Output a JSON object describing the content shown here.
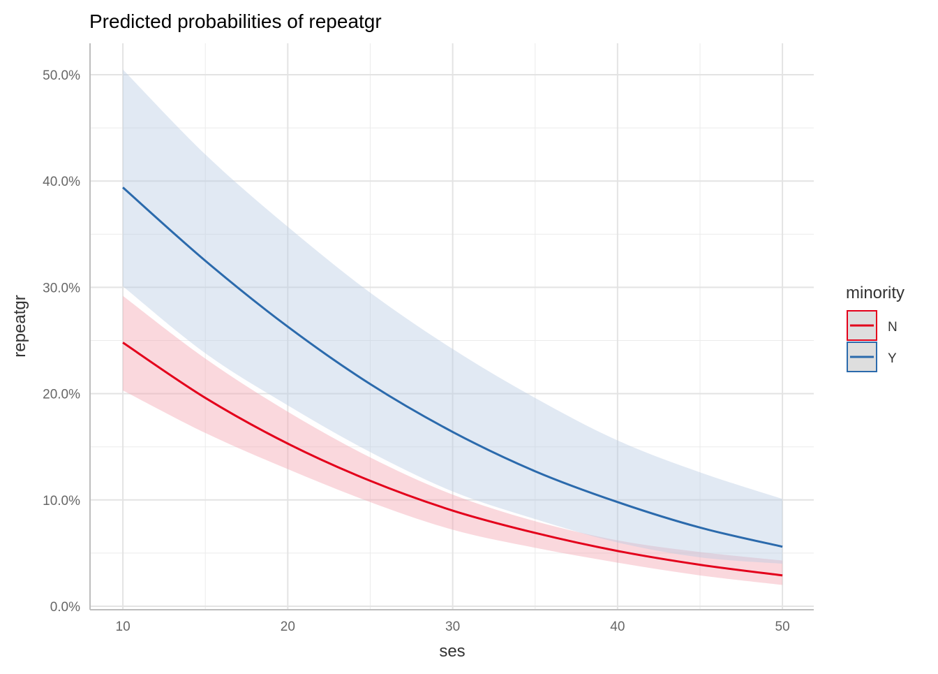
{
  "chart_data": {
    "type": "line",
    "title": "Predicted probabilities of repeatgr",
    "xlabel": "ses",
    "ylabel": "repeatgr",
    "xlim": [
      8.05,
      51.9
    ],
    "ylim": [
      -0.33,
      52.96
    ],
    "x_ticks": [
      10,
      20,
      30,
      40,
      50
    ],
    "x_tick_labels": [
      "10",
      "20",
      "30",
      "40",
      "50"
    ],
    "y_ticks": [
      0,
      10,
      20,
      30,
      40,
      50
    ],
    "y_tick_labels": [
      "0.0%",
      "10.0%",
      "20.0%",
      "30.0%",
      "40.0%",
      "50.0%"
    ],
    "grid": true,
    "legend": {
      "title": "minority",
      "placement": "right"
    },
    "x": [
      10,
      15,
      20,
      25,
      30,
      35,
      40,
      45,
      50
    ],
    "series": [
      {
        "name": "N",
        "color": "#e3001b",
        "fill": "#f4a3ad",
        "values": [
          24.8,
          19.6,
          15.3,
          11.8,
          9.0,
          6.9,
          5.2,
          3.9,
          2.9
        ],
        "lower": [
          20.3,
          16.3,
          12.9,
          9.8,
          7.2,
          5.5,
          4.1,
          2.9,
          2.0
        ],
        "upper": [
          29.2,
          23.3,
          18.3,
          14.0,
          10.5,
          8.0,
          6.2,
          5.1,
          4.3
        ]
      },
      {
        "name": "Y",
        "color": "#2b6aac",
        "fill": "#b8cbe2",
        "values": [
          39.4,
          32.5,
          26.3,
          20.9,
          16.4,
          12.7,
          9.8,
          7.4,
          5.6
        ],
        "lower": [
          30.1,
          23.8,
          18.9,
          14.5,
          10.8,
          8.2,
          6.0,
          4.6,
          4.0
        ],
        "upper": [
          50.5,
          42.5,
          35.7,
          29.5,
          24.2,
          19.6,
          15.6,
          12.6,
          10.1
        ]
      }
    ]
  }
}
